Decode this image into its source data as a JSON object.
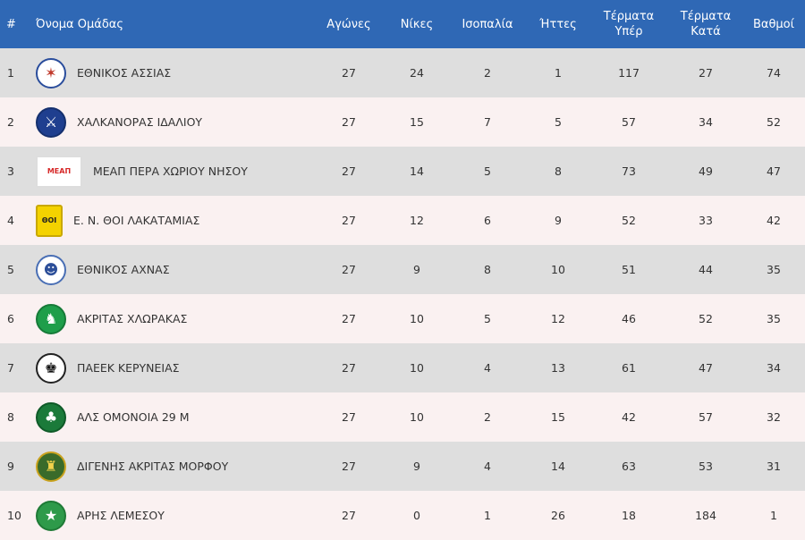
{
  "header": {
    "pos": "#",
    "team": "Όνομα Ομάδας",
    "played": "Αγώνες",
    "wins": "Νίκες",
    "draws": "Ισοπαλία",
    "losses": "Ήττες",
    "gf_line1": "Τέρματα",
    "gf_line2": "Υπέρ",
    "ga_line1": "Τέρματα",
    "ga_line2": "Κατά",
    "points": "Βαθμοί"
  },
  "colors": {
    "header_bg": "#2f68b5",
    "row_odd": "#dedede",
    "row_even": "#faf1f1"
  },
  "rows": [
    {
      "pos": "1",
      "team": "ΕΘΝΙΚΟΣ ΑΣΣΙΑΣ",
      "played": "27",
      "wins": "24",
      "draws": "2",
      "losses": "1",
      "gf": "117",
      "ga": "27",
      "points": "74",
      "logo": {
        "icon": "ethnikos-assias-crest",
        "shape": "circle",
        "bg": "#ffffff",
        "border": "#2a4d9c",
        "fg": "#c0392b",
        "glyph": "✶"
      }
    },
    {
      "pos": "2",
      "team": "ΧΑΛΚΑΝΟΡΑΣ ΙΔΑΛΙΟΥ",
      "played": "27",
      "wins": "15",
      "draws": "7",
      "losses": "5",
      "gf": "57",
      "ga": "34",
      "points": "52",
      "logo": {
        "icon": "chalkanoras-crest",
        "shape": "circle",
        "bg": "#1f3f8f",
        "border": "#15306e",
        "fg": "#ffffff",
        "glyph": "⚔"
      }
    },
    {
      "pos": "3",
      "team": "ΜΕΑΠ ΠΕΡΑ ΧΩΡΙΟΥ ΝΗΣΟΥ",
      "played": "27",
      "wins": "14",
      "draws": "5",
      "losses": "8",
      "gf": "73",
      "ga": "49",
      "points": "47",
      "logo": {
        "icon": "meap-crest",
        "shape": "rect",
        "bg": "#ffffff",
        "border": "#dddddd",
        "fg": "#d62828",
        "glyph": "ΜΕΑΠ"
      }
    },
    {
      "pos": "4",
      "team": "Ε. Ν. ΘΟΙ ΛΑΚΑΤΑΜΙΑΣ",
      "played": "27",
      "wins": "12",
      "draws": "6",
      "losses": "9",
      "gf": "52",
      "ga": "33",
      "points": "42",
      "logo": {
        "icon": "thoi-crest",
        "shape": "sq",
        "bg": "#f4d200",
        "border": "#c9a800",
        "fg": "#222222",
        "glyph": "ΘΟΙ"
      }
    },
    {
      "pos": "5",
      "team": "ΕΘΝΙΚΟΣ ΑΧΝΑΣ",
      "played": "27",
      "wins": "9",
      "draws": "8",
      "losses": "10",
      "gf": "51",
      "ga": "44",
      "points": "35",
      "logo": {
        "icon": "ethnikos-achnas-crest",
        "shape": "circle",
        "bg": "#ffffff",
        "border": "#4a6fb5",
        "fg": "#2d4f99",
        "glyph": "☻"
      }
    },
    {
      "pos": "6",
      "team": "ΑΚΡΙΤΑΣ ΧΛΩΡΑΚΑΣ",
      "played": "27",
      "wins": "10",
      "draws": "5",
      "losses": "12",
      "gf": "46",
      "ga": "52",
      "points": "35",
      "logo": {
        "icon": "akritas-chlorakas-crest",
        "shape": "circle",
        "bg": "#1e9e4a",
        "border": "#167a38",
        "fg": "#ffffff",
        "glyph": "♞"
      }
    },
    {
      "pos": "7",
      "team": "ΠΑΕΕΚ ΚΕΡΥΝΕΙΑΣ",
      "played": "27",
      "wins": "10",
      "draws": "4",
      "losses": "13",
      "gf": "61",
      "ga": "47",
      "points": "34",
      "logo": {
        "icon": "paeek-eagle-crest",
        "shape": "circle",
        "bg": "#ffffff",
        "border": "#222222",
        "fg": "#111111",
        "glyph": "♚"
      }
    },
    {
      "pos": "8",
      "team": "ΑΛΣ ΟΜΟΝΟΙΑ 29 Μ",
      "played": "27",
      "wins": "10",
      "draws": "2",
      "losses": "15",
      "gf": "42",
      "ga": "57",
      "points": "32",
      "logo": {
        "icon": "omonoia-clover-crest",
        "shape": "circle",
        "bg": "#1b7a3a",
        "border": "#0f5a28",
        "fg": "#ffffff",
        "glyph": "♣"
      }
    },
    {
      "pos": "9",
      "team": "ΔΙΓΕΝΗΣ ΑΚΡΙΤΑΣ ΜΟΡΦΟΥ",
      "played": "27",
      "wins": "9",
      "draws": "4",
      "losses": "14",
      "gf": "63",
      "ga": "53",
      "points": "31",
      "logo": {
        "icon": "digenis-morfou-crest",
        "shape": "circle",
        "bg": "#3a6b2a",
        "border": "#c9a21e",
        "fg": "#f2d24b",
        "glyph": "♜"
      }
    },
    {
      "pos": "10",
      "team": "ΑΡΗΣ ΛΕΜΕΣΟΥ",
      "played": "27",
      "wins": "0",
      "draws": "1",
      "losses": "26",
      "gf": "18",
      "ga": "184",
      "points": "1",
      "logo": {
        "icon": "aris-limassol-crest",
        "shape": "circle",
        "bg": "#2e9a4a",
        "border": "#1f7a36",
        "fg": "#ffffff",
        "glyph": "★"
      }
    }
  ]
}
